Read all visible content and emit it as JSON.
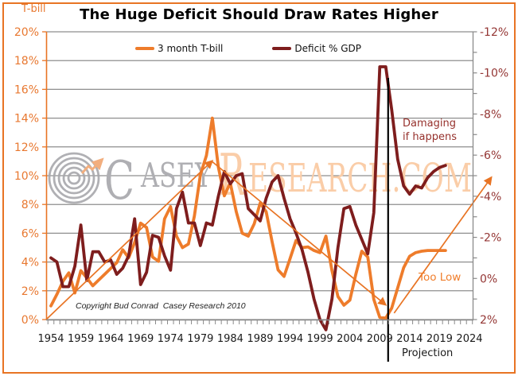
{
  "title": "The Huge Deficit Should Draw Rates Higher",
  "annotations": {
    "damaging_line1": "Damaging",
    "damaging_line2": "if happens",
    "too_low": "Too Low",
    "projection": "Projection",
    "copyright": "Copyright Bud Conrad  Casey Research 2010"
  },
  "watermark": {
    "c": "C",
    "asey": "ASEY",
    "r": "R",
    "esearch_com": "ESEARCH.COM"
  },
  "legend": [
    {
      "label": "3 month T-bill",
      "color": "#EE7C2B"
    },
    {
      "label": "Deficit % GDP",
      "color": "#7E1D1D"
    }
  ],
  "colors": {
    "frame_orange": "#E87424",
    "tbill_orange": "#EE7C2B",
    "deficit_darkred": "#7E1D1D",
    "left_axis_label": "#E87830",
    "right_axis_label": "#943634",
    "gridline_gray": "#8E8E8E",
    "spine_gray": "#8A8A8A",
    "watermark_gray": "#AFAFB3",
    "watermark_peach": "#FACDA8",
    "logo_arrow_peach": "#F2AE7E"
  },
  "chart_data": {
    "type": "line",
    "title": "The Huge Deficit Should Draw Rates Higher",
    "x_axis": {
      "tick_years": [
        1954,
        1959,
        1964,
        1969,
        1974,
        1979,
        1984,
        1989,
        1994,
        1999,
        2004,
        2009,
        2014,
        2019,
        2024
      ],
      "range": [
        1953.2,
        2024.7
      ],
      "note": "Projection"
    },
    "left_axis": {
      "title": "T-bill",
      "tick_labels_bottom_up": [
        "0%",
        "2%",
        "4%",
        "6%",
        "8%",
        "10%",
        "12%",
        "14%",
        "16%",
        "18%",
        "20%"
      ],
      "ylim": [
        0,
        20
      ],
      "grid": true
    },
    "right_axis": {
      "name": "Deficit % GDP",
      "inverted": true,
      "tick_labels_bottom_up": [
        "2%",
        "0%",
        "-2%",
        "-4%",
        "-6%",
        "-8%",
        "-10%",
        "-12%"
      ],
      "ylim_bottom_to_top": [
        2,
        -12
      ]
    },
    "legend_position": "top-center-inside",
    "series": [
      {
        "name": "3 month T-bill",
        "axis": "left",
        "color": "#EE7C2B",
        "points": [
          [
            1954,
            0.95
          ],
          [
            1955,
            1.75
          ],
          [
            1956,
            2.65
          ],
          [
            1957,
            3.25
          ],
          [
            1958,
            1.85
          ],
          [
            1959,
            3.4
          ],
          [
            1960,
            2.9
          ],
          [
            1961,
            2.35
          ],
          [
            1962,
            2.75
          ],
          [
            1963,
            3.15
          ],
          [
            1964,
            3.55
          ],
          [
            1965,
            3.95
          ],
          [
            1966,
            4.85
          ],
          [
            1967,
            4.3
          ],
          [
            1968,
            5.35
          ],
          [
            1969,
            6.7
          ],
          [
            1970,
            6.4
          ],
          [
            1971,
            4.35
          ],
          [
            1972,
            4.05
          ],
          [
            1973,
            7.0
          ],
          [
            1974,
            7.85
          ],
          [
            1975,
            5.8
          ],
          [
            1976,
            5.0
          ],
          [
            1977,
            5.25
          ],
          [
            1978,
            7.2
          ],
          [
            1979,
            10.05
          ],
          [
            1980,
            11.4
          ],
          [
            1981,
            14.0
          ],
          [
            1982,
            10.6
          ],
          [
            1983,
            8.6
          ],
          [
            1984,
            9.5
          ],
          [
            1985,
            7.5
          ],
          [
            1986,
            6.0
          ],
          [
            1987,
            5.8
          ],
          [
            1988,
            6.65
          ],
          [
            1989,
            8.1
          ],
          [
            1990,
            7.5
          ],
          [
            1991,
            5.4
          ],
          [
            1992,
            3.45
          ],
          [
            1993,
            3.0
          ],
          [
            1994,
            4.25
          ],
          [
            1995,
            5.5
          ],
          [
            1996,
            5.0
          ],
          [
            1997,
            5.05
          ],
          [
            1998,
            4.8
          ],
          [
            1999,
            4.65
          ],
          [
            2000,
            5.8
          ],
          [
            2001,
            3.4
          ],
          [
            2002,
            1.6
          ],
          [
            2003,
            1.0
          ],
          [
            2004,
            1.35
          ],
          [
            2005,
            3.15
          ],
          [
            2006,
            4.75
          ],
          [
            2007,
            4.35
          ],
          [
            2008,
            1.4
          ],
          [
            2009,
            0.15
          ],
          [
            2010,
            0.1
          ],
          [
            2011,
            0.8
          ],
          [
            2012,
            2.2
          ],
          [
            2013,
            3.6
          ],
          [
            2014,
            4.4
          ],
          [
            2015,
            4.65
          ],
          [
            2016,
            4.75
          ],
          [
            2017,
            4.8
          ],
          [
            2018,
            4.8
          ],
          [
            2019,
            4.8
          ],
          [
            2020,
            4.8
          ]
        ]
      },
      {
        "name": "Deficit % GDP",
        "axis": "right",
        "color": "#7E1D1D",
        "points": [
          [
            1954,
            -1.0
          ],
          [
            1955,
            -0.8
          ],
          [
            1956,
            0.4
          ],
          [
            1957,
            0.4
          ],
          [
            1958,
            -0.6
          ],
          [
            1959,
            -2.6
          ],
          [
            1960,
            0.1
          ],
          [
            1961,
            -1.3
          ],
          [
            1962,
            -1.3
          ],
          [
            1963,
            -0.8
          ],
          [
            1964,
            -0.9
          ],
          [
            1965,
            -0.2
          ],
          [
            1966,
            -0.5
          ],
          [
            1967,
            -1.1
          ],
          [
            1968,
            -2.9
          ],
          [
            1969,
            0.3
          ],
          [
            1970,
            -0.3
          ],
          [
            1971,
            -2.1
          ],
          [
            1972,
            -2.0
          ],
          [
            1973,
            -1.1
          ],
          [
            1974,
            -0.4
          ],
          [
            1975,
            -3.4
          ],
          [
            1976,
            -4.2
          ],
          [
            1977,
            -2.7
          ],
          [
            1978,
            -2.7
          ],
          [
            1979,
            -1.6
          ],
          [
            1980,
            -2.7
          ],
          [
            1981,
            -2.6
          ],
          [
            1982,
            -4.0
          ],
          [
            1983,
            -5.2
          ],
          [
            1984,
            -4.6
          ],
          [
            1985,
            -5.0
          ],
          [
            1986,
            -5.1
          ],
          [
            1987,
            -3.4
          ],
          [
            1988,
            -3.1
          ],
          [
            1989,
            -2.8
          ],
          [
            1990,
            -3.9
          ],
          [
            1991,
            -4.7
          ],
          [
            1992,
            -5.0
          ],
          [
            1993,
            -3.9
          ],
          [
            1994,
            -2.9
          ],
          [
            1995,
            -2.2
          ],
          [
            1996,
            -1.4
          ],
          [
            1997,
            -0.3
          ],
          [
            1998,
            1.0
          ],
          [
            1999,
            2.0
          ],
          [
            2000,
            2.5
          ],
          [
            2001,
            1.0
          ],
          [
            2002,
            -1.5
          ],
          [
            2003,
            -3.4
          ],
          [
            2004,
            -3.5
          ],
          [
            2005,
            -2.6
          ],
          [
            2006,
            -1.9
          ],
          [
            2007,
            -1.2
          ],
          [
            2008,
            -3.2
          ],
          [
            2009,
            -10.3
          ],
          [
            2010,
            -10.3
          ],
          [
            2011,
            -8.2
          ],
          [
            2012,
            -5.8
          ],
          [
            2013,
            -4.5
          ],
          [
            2014,
            -4.1
          ],
          [
            2015,
            -4.5
          ],
          [
            2016,
            -4.4
          ],
          [
            2017,
            -4.9
          ],
          [
            2018,
            -5.2
          ],
          [
            2019,
            -5.4
          ],
          [
            2020,
            -5.5
          ]
        ]
      }
    ],
    "trend_arrows": [
      {
        "from": [
          1953.2,
          0.0
        ],
        "to": [
          1980.9,
          11.0
        ]
      },
      {
        "from": [
          1980.9,
          11.0
        ],
        "to": [
          2009.9,
          1.05
        ]
      },
      {
        "from": [
          2011.4,
          0.45
        ],
        "to": [
          2027.6,
          9.85
        ]
      }
    ],
    "projection_divider_year": 2010.4
  }
}
